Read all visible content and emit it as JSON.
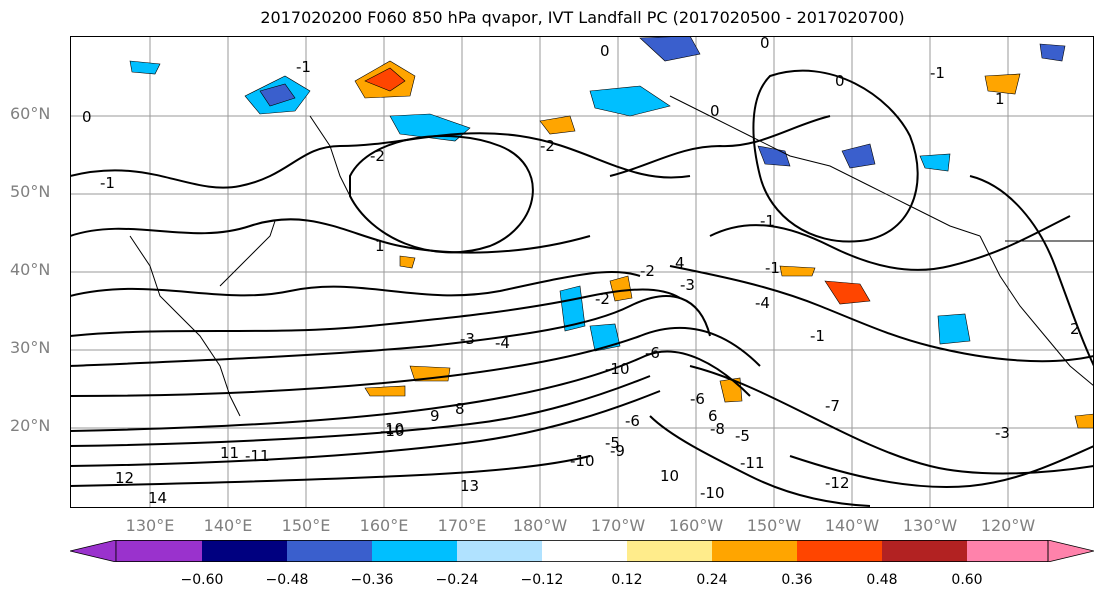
{
  "title": "2017020200 F060 850 hPa qvapor, IVT Landfall PC (2017020500 - 2017020700)",
  "lat_labels": [
    "60°N",
    "50°N",
    "40°N",
    "30°N",
    "20°N"
  ],
  "lon_labels": [
    "130°E",
    "140°E",
    "150°E",
    "160°E",
    "170°E",
    "180°W",
    "170°W",
    "160°W",
    "150°W",
    "140°W",
    "130°W",
    "120°W"
  ],
  "colorbar": {
    "colors": [
      "#9a32cd",
      "#000080",
      "#3a5fcd",
      "#00bfff",
      "#b0e2ff",
      "#ffffff",
      "#ffec8b",
      "#ffa500",
      "#ff4500",
      "#b22222",
      "#ff82ab"
    ],
    "tick_labels": [
      "−0.60",
      "−0.48",
      "−0.36",
      "−0.24",
      "−0.12",
      "0.12",
      "0.24",
      "0.36",
      "0.48",
      "0.60"
    ]
  },
  "contour_labels": [
    "0",
    "0",
    "0",
    "-1",
    "0",
    "0",
    "-1",
    "-1",
    "-1",
    "1",
    "-2",
    "-2",
    "-2",
    "-1",
    "2",
    "-3",
    "-4",
    "-3",
    "-4",
    "-2",
    "-1",
    "4",
    "-10",
    "9",
    "8",
    "-10",
    "-9",
    "-6",
    "6",
    "-5",
    "-6",
    "-7",
    "-5",
    "10",
    "-10",
    "10",
    "-11",
    "-11",
    "-10",
    "-12",
    "11",
    "12",
    "14",
    "-6",
    "-8",
    "-3",
    "13",
    "1"
  ]
}
